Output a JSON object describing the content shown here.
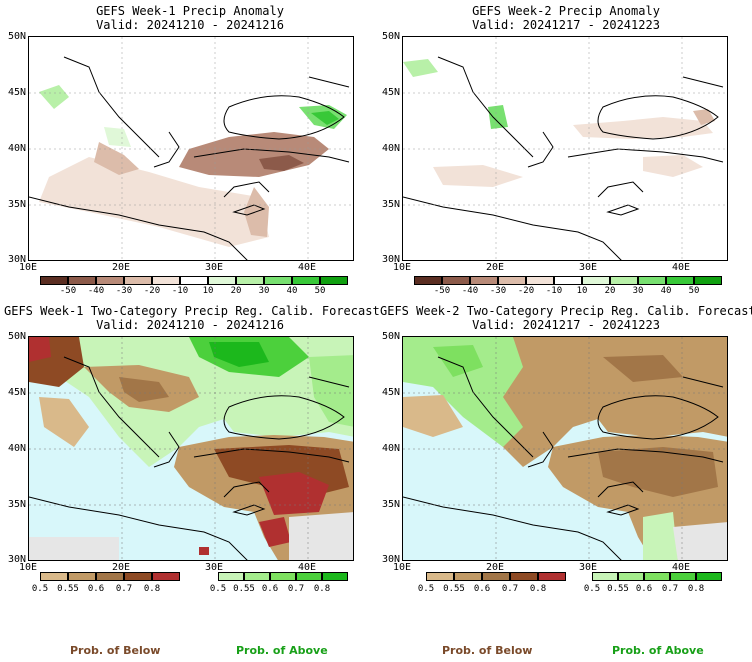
{
  "panels": [
    {
      "id": "p1",
      "title": "GEFS Week-1 Precip Anomaly",
      "valid": "Valid: 20241210 - 20241216",
      "lat_labels": [
        "50N",
        "45N",
        "40N",
        "35N",
        "30N"
      ],
      "lon_labels": [
        "10E",
        "20E",
        "30E",
        "40E"
      ]
    },
    {
      "id": "p2",
      "title": "GEFS Week-2 Precip Anomaly",
      "valid": "Valid: 20241217 - 20241223",
      "lat_labels": [
        "50N",
        "45N",
        "40N",
        "35N",
        "30N"
      ],
      "lon_labels": [
        "10E",
        "20E",
        "30E",
        "40E"
      ]
    },
    {
      "id": "p3",
      "title": "GEFS Week-1 Two-Category Precip Reg. Calib. Forecast",
      "valid": "Valid: 20241210 - 20241216",
      "lat_labels": [
        "50N",
        "45N",
        "40N",
        "35N",
        "30N"
      ],
      "lon_labels": [
        "10E",
        "20E",
        "30E",
        "40E"
      ]
    },
    {
      "id": "p4",
      "title": "GEFS Week-2 Two-Category Precip Reg. Calib. Forecast",
      "valid": "Valid: 20241217 - 20241223",
      "lat_labels": [
        "50N",
        "45N",
        "40N",
        "35N",
        "30N"
      ],
      "lon_labels": [
        "10E",
        "20E",
        "30E",
        "40E"
      ]
    }
  ],
  "anomaly_scale": {
    "ticks": [
      "-50",
      "-40",
      "-30",
      "-20",
      "-10",
      "10",
      "20",
      "30",
      "40",
      "50"
    ],
    "colors": [
      "#5b2e22",
      "#8c5a4a",
      "#b88a78",
      "#dcbcaa",
      "#f2e2d8",
      "#ffffff",
      "#e0f8d8",
      "#b8f0a8",
      "#78e070",
      "#38c838",
      "#10a010"
    ]
  },
  "prob_below_scale": {
    "ticks": [
      "0.5",
      "0.55",
      "0.6",
      "0.7",
      "0.8"
    ],
    "colors": [
      "#d9b98a",
      "#c19a66",
      "#a27648",
      "#8e4a24",
      "#b03030"
    ]
  },
  "prob_above_scale": {
    "ticks": [
      "0.5",
      "0.55",
      "0.6",
      "0.7",
      "0.8"
    ],
    "colors": [
      "#c8f4b8",
      "#a4ec8c",
      "#7ee060",
      "#4cd03c",
      "#1cb81c"
    ]
  },
  "prob_labels": {
    "below": "Prob. of Below",
    "above": "Prob. of Above"
  },
  "colors": {
    "sea": "#d8f7fa",
    "land_dry": "#c19a66",
    "land_wet": "#7ee060",
    "no_data": "#e6e6e6"
  }
}
